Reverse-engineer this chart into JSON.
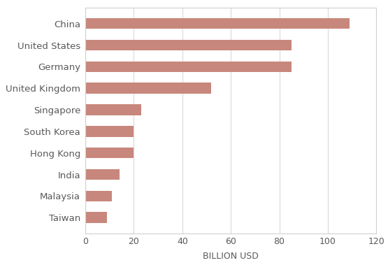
{
  "countries": [
    "China",
    "United States",
    "Germany",
    "United Kingdom",
    "Singapore",
    "South Korea",
    "Hong Kong",
    "India",
    "Malaysia",
    "Taiwan"
  ],
  "values": [
    109,
    85,
    85,
    52,
    23,
    20,
    20,
    14,
    11,
    9
  ],
  "bar_color": "#c8877c",
  "xlabel": "BILLION USD",
  "xlim": [
    0,
    120
  ],
  "xticks": [
    0,
    20,
    40,
    60,
    80,
    100,
    120
  ],
  "background_color": "#ffffff",
  "plot_bg_color": "#ffffff",
  "grid_color": "#d9d9d9",
  "border_color": "#d0d0d0",
  "label_fontsize": 9.5,
  "tick_fontsize": 9,
  "xlabel_fontsize": 9,
  "bar_height": 0.5
}
